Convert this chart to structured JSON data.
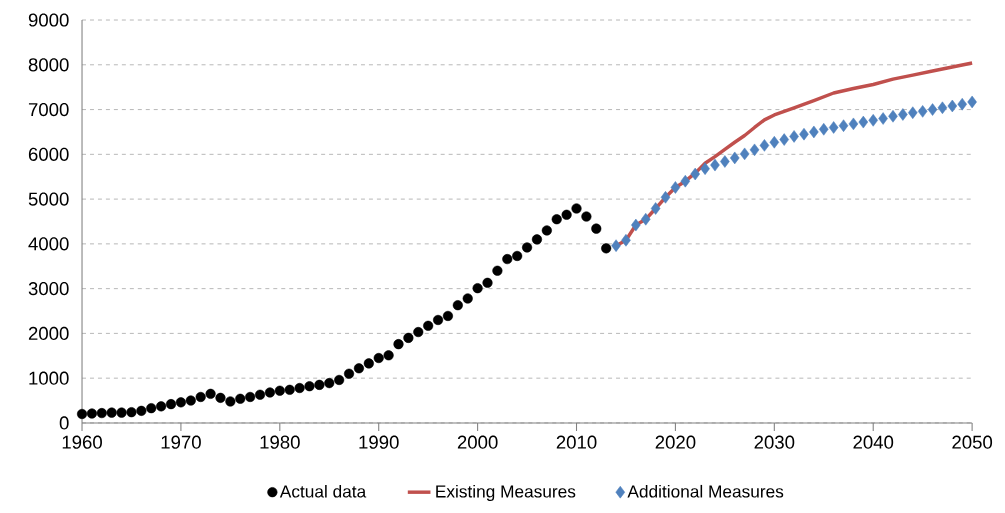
{
  "chart_data": {
    "type": "scatter",
    "xlim": [
      1960,
      2050
    ],
    "ylim": [
      0,
      9000
    ],
    "xticks": [
      1960,
      1970,
      1980,
      1990,
      2000,
      2010,
      2020,
      2030,
      2040,
      2050
    ],
    "yticks": [
      0,
      1000,
      2000,
      3000,
      4000,
      5000,
      6000,
      7000,
      8000,
      9000
    ],
    "grid": "y",
    "legend": "bottom",
    "series": [
      {
        "name": "Actual data",
        "marker": "circle",
        "color": "#000000",
        "x": [
          1960,
          1961,
          1962,
          1963,
          1964,
          1965,
          1966,
          1967,
          1968,
          1969,
          1970,
          1971,
          1972,
          1973,
          1974,
          1975,
          1976,
          1977,
          1978,
          1979,
          1980,
          1981,
          1982,
          1983,
          1984,
          1985,
          1986,
          1987,
          1988,
          1989,
          1990,
          1991,
          1992,
          1993,
          1994,
          1995,
          1996,
          1997,
          1998,
          1999,
          2000,
          2001,
          2002,
          2003,
          2004,
          2005,
          2006,
          2007,
          2008,
          2009,
          2010,
          2011,
          2012,
          2013
        ],
        "values": [
          200,
          210,
          220,
          230,
          230,
          240,
          270,
          330,
          370,
          420,
          460,
          500,
          580,
          650,
          560,
          480,
          540,
          580,
          630,
          680,
          720,
          740,
          780,
          820,
          850,
          890,
          960,
          1100,
          1220,
          1330,
          1450,
          1510,
          1760,
          1900,
          2030,
          2170,
          2300,
          2390,
          2630,
          2780,
          3010,
          3130,
          3400,
          3660,
          3730,
          3920,
          4100,
          4300,
          4550,
          4650,
          4790,
          4610,
          4340,
          3900
        ]
      },
      {
        "name": "Existing Measures",
        "type": "line",
        "marker": "none",
        "line_style": "solid",
        "color": "#c0504d",
        "x": [
          2014,
          2015,
          2016,
          2017,
          2018,
          2019,
          2020,
          2021,
          2022,
          2023,
          2024,
          2025,
          2026,
          2027,
          2028,
          2029,
          2030,
          2032,
          2034,
          2036,
          2038,
          2040,
          2042,
          2044,
          2046,
          2048,
          2050
        ],
        "values": [
          3960,
          4080,
          4420,
          4550,
          4790,
          5040,
          5260,
          5400,
          5580,
          5800,
          5950,
          6110,
          6270,
          6420,
          6600,
          6770,
          6880,
          7040,
          7200,
          7370,
          7470,
          7560,
          7680,
          7770,
          7860,
          7950,
          8040
        ]
      },
      {
        "name": "Additional Measures",
        "marker": "diamond",
        "color": "#4f81bd",
        "x": [
          2014,
          2015,
          2016,
          2017,
          2018,
          2019,
          2020,
          2021,
          2022,
          2023,
          2024,
          2025,
          2026,
          2027,
          2028,
          2029,
          2030,
          2031,
          2032,
          2033,
          2034,
          2035,
          2036,
          2037,
          2038,
          2039,
          2040,
          2041,
          2042,
          2043,
          2044,
          2045,
          2046,
          2047,
          2048,
          2049,
          2050
        ],
        "values": [
          3960,
          4080,
          4420,
          4550,
          4790,
          5040,
          5260,
          5400,
          5560,
          5680,
          5760,
          5840,
          5920,
          6010,
          6100,
          6200,
          6270,
          6330,
          6400,
          6450,
          6500,
          6560,
          6600,
          6640,
          6680,
          6720,
          6760,
          6800,
          6850,
          6890,
          6930,
          6960,
          7000,
          7040,
          7080,
          7120,
          7170
        ]
      }
    ]
  }
}
